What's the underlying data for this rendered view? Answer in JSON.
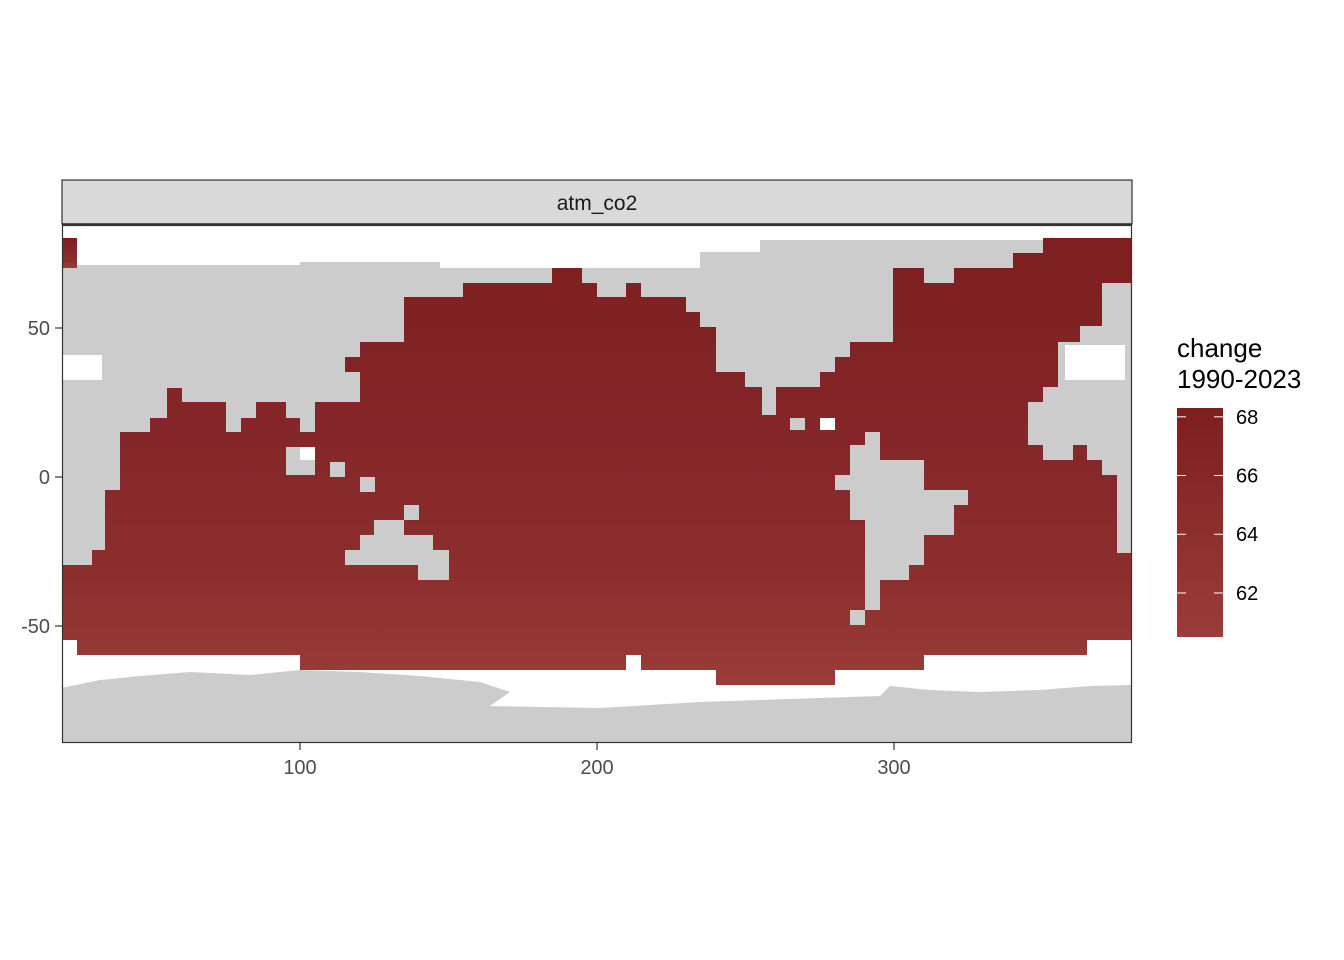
{
  "chart_data": {
    "type": "heatmap",
    "panel_title": "atm_co2",
    "x_ticks": [
      100,
      200,
      300
    ],
    "y_ticks": [
      50,
      0,
      -50
    ],
    "xlim": [
      20,
      380
    ],
    "ylim": [
      -90,
      83
    ],
    "legend": {
      "title_lines": [
        "change",
        "1990-2023"
      ],
      "ticks": [
        68,
        66,
        64,
        62
      ],
      "range": [
        60.5,
        68.3
      ],
      "color_low": "#9a3c38",
      "color_high": "#7d1f1f",
      "placement": "right"
    },
    "value_pattern": "≈67–68 in the high northern latitudes, ≈64–65 across the tropics, decreasing to ≈61 near 60°S",
    "colors": {
      "land": "#cccccc",
      "ocean_high": "#7d1f1f",
      "ocean_low": "#9a3c38",
      "strip_fill": "#d9d9d9",
      "panel_border": "#333333"
    }
  }
}
